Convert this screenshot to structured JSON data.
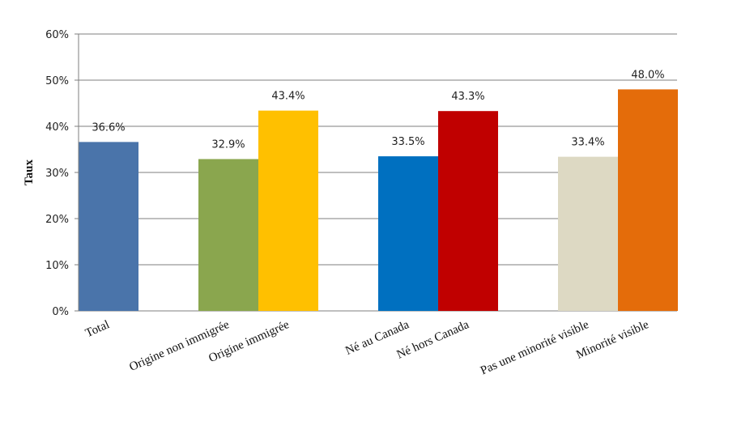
{
  "chart_data": {
    "type": "bar",
    "title": "",
    "xlabel": "",
    "ylabel": "Taux",
    "ylim": [
      0,
      60
    ],
    "y_ticks": [
      "0%",
      "10%",
      "20%",
      "30%",
      "40%",
      "50%",
      "60%"
    ],
    "grid": true,
    "legend": "none",
    "bars": [
      {
        "category": "Total",
        "value": 36.6,
        "label": "36.6%",
        "color": "#4a74aa",
        "group": 0
      },
      {
        "category": "Origine non immigrée",
        "value": 32.9,
        "label": "32.9%",
        "color": "#8aa64e",
        "group": 1
      },
      {
        "category": "Origine immigrée",
        "value": 43.4,
        "label": "43.4%",
        "color": "#ffc000",
        "group": 1
      },
      {
        "category": "Né au Canada",
        "value": 33.5,
        "label": "33.5%",
        "color": "#0070c0",
        "group": 2
      },
      {
        "category": "Né hors Canada",
        "value": 43.3,
        "label": "43.3%",
        "color": "#c00000",
        "group": 2
      },
      {
        "category": "Pas une minorité visible",
        "value": 33.4,
        "label": "33.4%",
        "color": "#ddd9c3",
        "group": 3
      },
      {
        "category": "Minorité visible",
        "value": 48.0,
        "label": "48.0%",
        "color": "#e46c0a",
        "group": 3
      }
    ]
  }
}
